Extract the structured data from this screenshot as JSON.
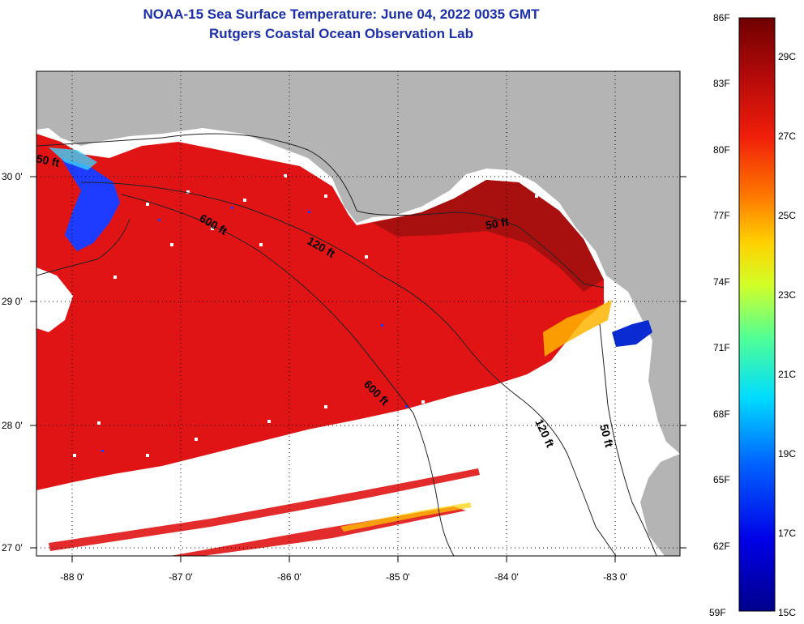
{
  "title": {
    "line1": "NOAA-15 Sea Surface Temperature:  June 04, 2022 0035 GMT",
    "line2": "Rutgers Coastal Ocean Observation Lab"
  },
  "axes": {
    "lat_labels": [
      "30 0'",
      "29 0'",
      "28 0'",
      "27 0'"
    ],
    "lon_labels": [
      "-88 0'",
      "-87 0'",
      "-86 0'",
      "-85 0'",
      "-84 0'",
      "-83 0'"
    ]
  },
  "contours": {
    "c50_west": "50 ft",
    "c600_west": "600 ft",
    "c120_west": "120 ft",
    "c50_east": "50 ft",
    "c600_south": "600 ft",
    "c120_south": "120 ft",
    "c50_south": "50 ft"
  },
  "colorbar": {
    "f_labels": [
      "86F",
      "83F",
      "80F",
      "77F",
      "74F",
      "71F",
      "68F",
      "65F",
      "62F",
      "59F"
    ],
    "c_labels": [
      "29C",
      "27C",
      "25C",
      "23C",
      "21C",
      "19C",
      "17C",
      "15C"
    ]
  },
  "colors": {
    "land": "#b4b4b4",
    "ocean_warm": "#e01414",
    "ocean_hot": "#8c0a0a",
    "title": "#1a2fa8"
  }
}
